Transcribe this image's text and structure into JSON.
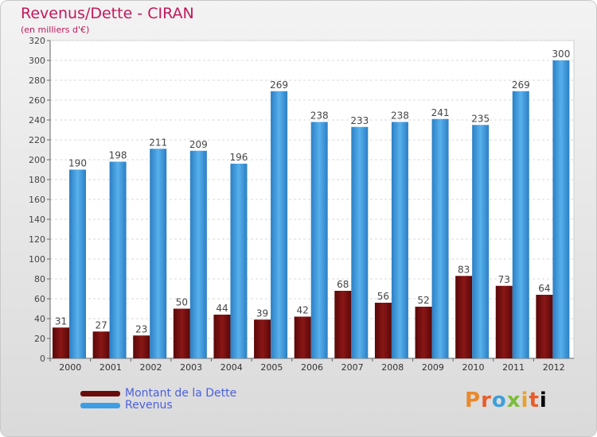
{
  "chart_data": {
    "type": "bar",
    "title": "Revenus/Dette - CIRAN",
    "subtitle": "(en milliers d'€)",
    "categories": [
      "2000",
      "2001",
      "2002",
      "2003",
      "2004",
      "2005",
      "2006",
      "2007",
      "2008",
      "2009",
      "2010",
      "2011",
      "2012"
    ],
    "series": [
      {
        "name": "Montant de la Dette",
        "color": "#7a1010",
        "values": [
          31,
          27,
          23,
          50,
          44,
          39,
          42,
          68,
          56,
          52,
          83,
          73,
          64
        ]
      },
      {
        "name": "Revenus",
        "color": "#3e9ee4",
        "values": [
          190,
          198,
          211,
          209,
          196,
          269,
          238,
          233,
          238,
          241,
          235,
          269,
          300
        ]
      }
    ],
    "ylim": [
      0,
      320
    ],
    "ytick_step": 20,
    "grid": true,
    "legend_position": "bottom-left"
  },
  "brand": {
    "text": "Proxiti"
  }
}
